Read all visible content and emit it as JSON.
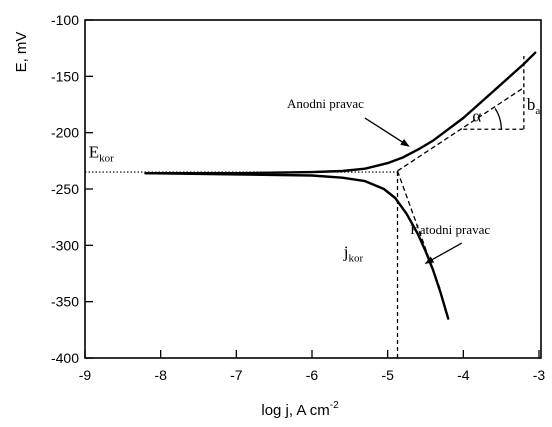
{
  "chart_data": {
    "type": "line",
    "xlabel": "log j, A cm",
    "xlabel_sup": "-2",
    "ylabel": "E, mV",
    "xlim": [
      -9,
      -3
    ],
    "ylim": [
      -400,
      -100
    ],
    "grid": false,
    "xticks": [
      -9,
      -8,
      -7,
      -6,
      -5,
      -4,
      -3
    ],
    "yticks": [
      -100,
      -150,
      -200,
      -250,
      -300,
      -350,
      -400
    ],
    "series": [
      {
        "id": "anodic-branch",
        "x": [
          -8.2,
          -7.0,
          -6.0,
          -5.6,
          -5.3,
          -5.0,
          -4.8,
          -4.6,
          -4.4,
          -4.2,
          -4.0,
          -3.8,
          -3.6,
          -3.4,
          -3.2,
          -3.05
        ],
        "y": [
          -236,
          -236,
          -235,
          -234,
          -232,
          -227,
          -222,
          -215,
          -207,
          -197,
          -187,
          -175,
          -163,
          -151,
          -139,
          -129
        ]
      },
      {
        "id": "cathodic-branch",
        "x": [
          -8.2,
          -7.0,
          -6.0,
          -5.6,
          -5.3,
          -5.05,
          -4.9,
          -4.75,
          -4.6,
          -4.5,
          -4.4,
          -4.3,
          -4.2
        ],
        "y": [
          -236,
          -237,
          -238,
          -240,
          -243,
          -250,
          -258,
          -272,
          -290,
          -305,
          -322,
          -342,
          -365
        ]
      }
    ],
    "tafel_lines": {
      "anodic": {
        "x": [
          -4.87,
          -3.2
        ],
        "y": [
          -234,
          -160
        ]
      },
      "cathodic": {
        "x": [
          -4.87,
          -4.3
        ],
        "y": [
          -234,
          -340
        ]
      }
    },
    "reference_lines": {
      "e_kor": {
        "y": -235,
        "x": [
          -9,
          -4.87
        ]
      },
      "j_kor": {
        "x": -4.87,
        "y": [
          -400,
          -234
        ]
      },
      "b_a_horizontal": {
        "y": -197,
        "x": [
          -4.0,
          -3.2
        ]
      },
      "b_a_vertical": {
        "x": -3.2,
        "y": [
          -197,
          -132
        ]
      }
    },
    "annotations": [
      {
        "id": "anodni",
        "text": "Anodni pravac",
        "x": -6.33,
        "y": -178
      },
      {
        "id": "katodni",
        "text": "Katodni pravac",
        "x": -4.7,
        "y": -290
      },
      {
        "id": "alpha",
        "text": "α",
        "x": -3.88,
        "y": -190
      },
      {
        "id": "ba",
        "text": "b",
        "sub": "a",
        "x": -3.16,
        "y": -180
      },
      {
        "id": "ekor",
        "text": "E",
        "sub": "kor",
        "x": -8.95,
        "y": -222
      },
      {
        "id": "jkor",
        "text": "j",
        "sub": "kor",
        "x": -5.58,
        "y": -311
      }
    ]
  }
}
